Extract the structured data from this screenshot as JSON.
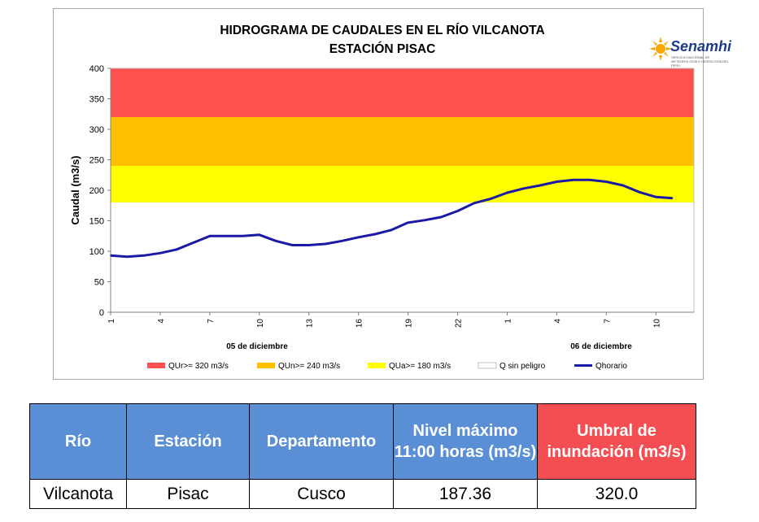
{
  "chart_data": {
    "type": "line",
    "title": "HIDROGRAMA DE CAUDALES EN EL RÍO VILCANOTA",
    "subtitle": "ESTACIÓN PISAC",
    "ylabel": "Caudal  (m3/s)",
    "ylim": [
      0,
      400
    ],
    "yticks": [
      "0",
      "50",
      "100",
      "150",
      "200",
      "250",
      "300",
      "350",
      "400"
    ],
    "xtick_labels": [
      "1",
      "4",
      "7",
      "10",
      "13",
      "16",
      "19",
      "22",
      "1",
      "4",
      "7",
      "10"
    ],
    "day_labels": [
      "05 de diciembre",
      "06 de diciembre"
    ],
    "bands": [
      {
        "name": "QUr>= 320 m3/s",
        "from": 320,
        "to": 400,
        "color": "#ff5050"
      },
      {
        "name": "QUn>= 240 m3/s",
        "from": 240,
        "to": 320,
        "color": "#ffc000"
      },
      {
        "name": "QUa>= 180 m3/s",
        "from": 180,
        "to": 240,
        "color": "#ffff00"
      },
      {
        "name": "Q sin peligro",
        "from": 0,
        "to": 180,
        "color": "#ffffff"
      }
    ],
    "series": [
      {
        "name": "Qhorario",
        "color": "#1a1aa6",
        "values": [
          93,
          91,
          93,
          97,
          103,
          114,
          125,
          125,
          125,
          127,
          117,
          110,
          110,
          112,
          117,
          123,
          128,
          135,
          147,
          151,
          156,
          166,
          179,
          186,
          196,
          203,
          208,
          214,
          217,
          217,
          214,
          208,
          197,
          189,
          187
        ]
      }
    ],
    "legend_position": "bottom"
  },
  "logo": {
    "name": "Senamhi",
    "subtitle": "SERVICIO NACIONAL DE METEOROLOGÍA E HIDROLOGÍA DEL PERÚ",
    "icon": "sun-icon",
    "sun_color": "#f7a800",
    "text_color": "#1f3b8c"
  },
  "table": {
    "headers": [
      "Río",
      "Estación",
      "Departamento",
      "Nivel máximo 11:00 horas (m3/s)",
      "Umbral de inundación (m3/s)"
    ],
    "row": [
      "Vilcanota",
      "Pisac",
      "Cusco",
      "187.36",
      "320.0"
    ],
    "header_color": "#5b8fd5",
    "threshold_header_color": "#f44e52"
  }
}
